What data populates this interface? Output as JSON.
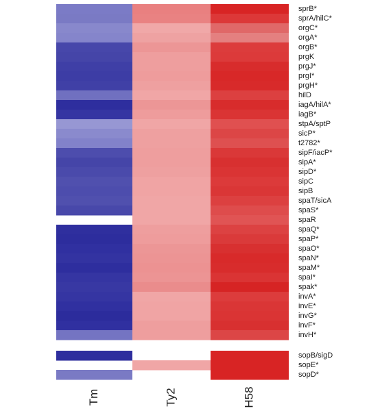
{
  "heatmap": {
    "columns": [
      "Tm",
      "Ty2",
      "H58"
    ],
    "blocks": [
      {
        "rows": [
          {
            "label": "sprB*",
            "colors": [
              "#7b7bc6",
              "#e98080",
              "#d82424"
            ]
          },
          {
            "label": "sprA/hilC*",
            "colors": [
              "#7a7ac4",
              "#e98282",
              "#dc3838"
            ]
          },
          {
            "label": "orgC*",
            "colors": [
              "#8888cc",
              "#f0a8a8",
              "#e06868"
            ]
          },
          {
            "label": "orgA*",
            "colors": [
              "#8585cb",
              "#eea2a2",
              "#e48080"
            ]
          },
          {
            "label": "orgB*",
            "colors": [
              "#4747aa",
              "#ec9696",
              "#dc3c3c"
            ]
          },
          {
            "label": "prgK",
            "colors": [
              "#4545a8",
              "#ee9e9e",
              "#dc3a3a"
            ]
          },
          {
            "label": "prgJ*",
            "colors": [
              "#3f3fa6",
              "#ee9e9e",
              "#d82c2c"
            ]
          },
          {
            "label": "prgI*",
            "colors": [
              "#3d3da5",
              "#ee9c9c",
              "#d82828"
            ]
          },
          {
            "label": "prgH*",
            "colors": [
              "#4040a6",
              "#eea0a0",
              "#d82a2a"
            ]
          },
          {
            "label": "hilD",
            "colors": [
              "#7070c0",
              "#f0a6a6",
              "#dc4040"
            ]
          },
          {
            "label": "iagA/hilA*",
            "colors": [
              "#2e2e9e",
              "#ec9696",
              "#d82c2c"
            ]
          },
          {
            "label": "iagB*",
            "colors": [
              "#3535a2",
              "#ee9c9c",
              "#da3434"
            ]
          },
          {
            "label": "stpA/sptP",
            "colors": [
              "#9797d3",
              "#f0a6a6",
              "#e05050"
            ]
          },
          {
            "label": "sicP*",
            "colors": [
              "#8a8acd",
              "#eea0a0",
              "#dc4646"
            ]
          },
          {
            "label": "t2782*",
            "colors": [
              "#8282ca",
              "#eea0a0",
              "#de5050"
            ]
          },
          {
            "label": "sipF/iacP*",
            "colors": [
              "#4d4dad",
              "#ee9e9e",
              "#da3838"
            ]
          },
          {
            "label": "sipA*",
            "colors": [
              "#4545a8",
              "#ee9e9e",
              "#d83030"
            ]
          },
          {
            "label": "sipD*",
            "colors": [
              "#4a4aab",
              "#eea0a0",
              "#da3434"
            ]
          },
          {
            "label": "sipC",
            "colors": [
              "#5050ae",
              "#f0a4a4",
              "#dc3a3a"
            ]
          },
          {
            "label": "sipB",
            "colors": [
              "#4d4dad",
              "#f0a4a4",
              "#da3636"
            ]
          },
          {
            "label": "spaT/sicA",
            "colors": [
              "#5050ae",
              "#f0a6a6",
              "#dc4040"
            ]
          },
          {
            "label": "spaS*",
            "colors": [
              "#4848aa",
              "#f0a6a6",
              "#de4c4c"
            ]
          },
          {
            "label": "spaR",
            "colors": [
              null,
              "#f0a6a6",
              "#e05454"
            ]
          },
          {
            "label": "spaQ*",
            "colors": [
              "#2f2f9e",
              "#ee9e9e",
              "#dc4242"
            ]
          },
          {
            "label": "spaP*",
            "colors": [
              "#2d2d9d",
              "#ee9c9c",
              "#da3a3a"
            ]
          },
          {
            "label": "spaO*",
            "colors": [
              "#3030a0",
              "#ec9696",
              "#d83030"
            ]
          },
          {
            "label": "spaN*",
            "colors": [
              "#3333a1",
              "#ec9494",
              "#d82a2a"
            ]
          },
          {
            "label": "spaM*",
            "colors": [
              "#2e2e9e",
              "#ec9292",
              "#d82c2c"
            ]
          },
          {
            "label": "spaI*",
            "colors": [
              "#3535a2",
              "#ec9494",
              "#da3434"
            ]
          },
          {
            "label": "spak*",
            "colors": [
              "#3838a3",
              "#ea8c8c",
              "#d62424"
            ]
          },
          {
            "label": "invA*",
            "colors": [
              "#3535a2",
              "#f0a6a6",
              "#dc3c3c"
            ]
          },
          {
            "label": "invE*",
            "colors": [
              "#3030a0",
              "#f0a4a4",
              "#da3636"
            ]
          },
          {
            "label": "invG*",
            "colors": [
              "#2c2c9c",
              "#f0a4a4",
              "#da3434"
            ]
          },
          {
            "label": "invF*",
            "colors": [
              "#3030a0",
              "#ee9e9e",
              "#d83030"
            ]
          },
          {
            "label": "invH*",
            "colors": [
              "#7474c2",
              "#ee9e9e",
              "#dc4646"
            ]
          }
        ]
      },
      {
        "rows": [
          {
            "label": "sopB/sigD",
            "colors": [
              "#2e2e9e",
              null,
              "#d82424"
            ]
          },
          {
            "label": "sopE*",
            "colors": [
              null,
              "#f0a6a6",
              "#d82424"
            ]
          },
          {
            "label": "sopD*",
            "colors": [
              "#7a7ac4",
              null,
              "#d82424"
            ]
          }
        ]
      }
    ]
  }
}
